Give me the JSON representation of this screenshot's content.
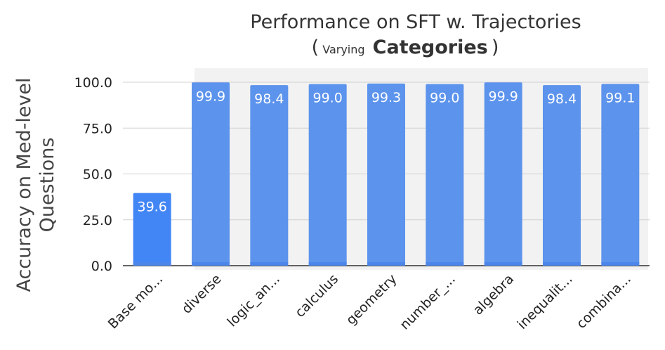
{
  "chart_data": {
    "type": "bar",
    "title_line1": "Performance on SFT w. Trajectories",
    "title_line2": {
      "open": "(",
      "small": "Varying",
      "bold": "Categories",
      "close": ")"
    },
    "ylabel_line1": "Accuracy on Med-level",
    "ylabel_line2": "Questions",
    "xlabel": "",
    "ylim": [
      0,
      100
    ],
    "yticks": [
      "0.0",
      "25.0",
      "50.0",
      "75.0",
      "100.0"
    ],
    "ytick_values": [
      0,
      25,
      50,
      75,
      100
    ],
    "categories": [
      "Base mo...",
      "diverse",
      "logic_an...",
      "calculus",
      "geometry",
      "number_...",
      "algebra",
      "inequalit...",
      "combina..."
    ],
    "values": [
      39.6,
      99.9,
      98.4,
      99.0,
      99.3,
      99.0,
      99.9,
      98.4,
      99.1
    ],
    "value_labels": [
      "39.6",
      "99.9",
      "98.4",
      "99.0",
      "99.3",
      "99.0",
      "99.9",
      "98.4",
      "99.1"
    ],
    "grid": true,
    "colors": {
      "base_bar": "#4285f4",
      "bar": "#5c93ec",
      "bar_bottom": "#4d86ea",
      "highlight_band": "#f2f2f2",
      "grid": "#d0d0d0",
      "axis": "#333333"
    }
  }
}
